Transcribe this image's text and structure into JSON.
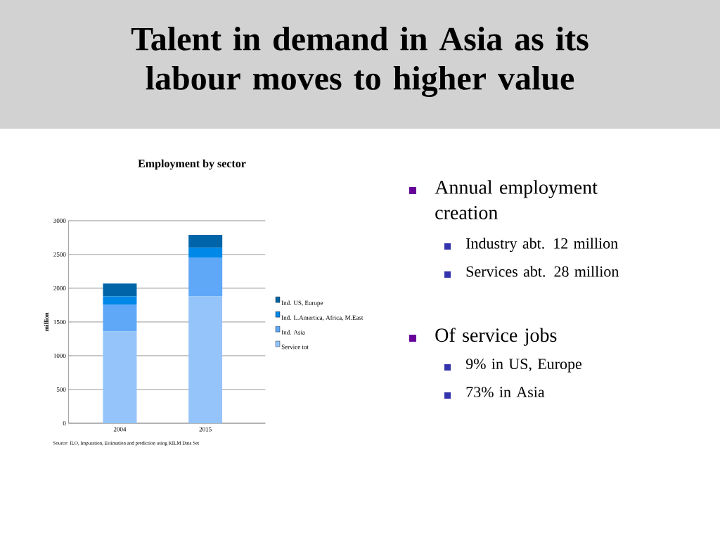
{
  "chart_data": {
    "type": "bar",
    "stacked": true,
    "title": "Talent in demand in Asia as its labour moves to higher value",
    "subtitle": "Employment by sector",
    "ylabel": "million",
    "categories": [
      "2004",
      "2015"
    ],
    "series": [
      {
        "name": "Service tot",
        "color": "#94c4f9",
        "values": [
          1360,
          1880
        ]
      },
      {
        "name": "Ind. Asia",
        "color": "#5fa8f7",
        "values": [
          400,
          570
        ]
      },
      {
        "name": "Ind. L.Amertica, Africa, M.East",
        "color": "#0088e8",
        "values": [
          120,
          150
        ]
      },
      {
        "name": "Ind. US, Europe",
        "color": "#0065a8",
        "values": [
          190,
          190
        ]
      }
    ],
    "ylim": [
      0,
      3000
    ],
    "yticks": [
      0,
      500,
      1000,
      1500,
      2000,
      2500,
      3000
    ],
    "grid": "y",
    "legend": "right",
    "annotations": [
      "Source: ILO,  Imputation, Estimation and prediction using KILM Data Set",
      "Annual employment creation",
      "Industry abt. 12 million",
      "Services abt. 28 million",
      "Of service jobs",
      "9% in US, Europe",
      "73% in Asia"
    ]
  }
}
